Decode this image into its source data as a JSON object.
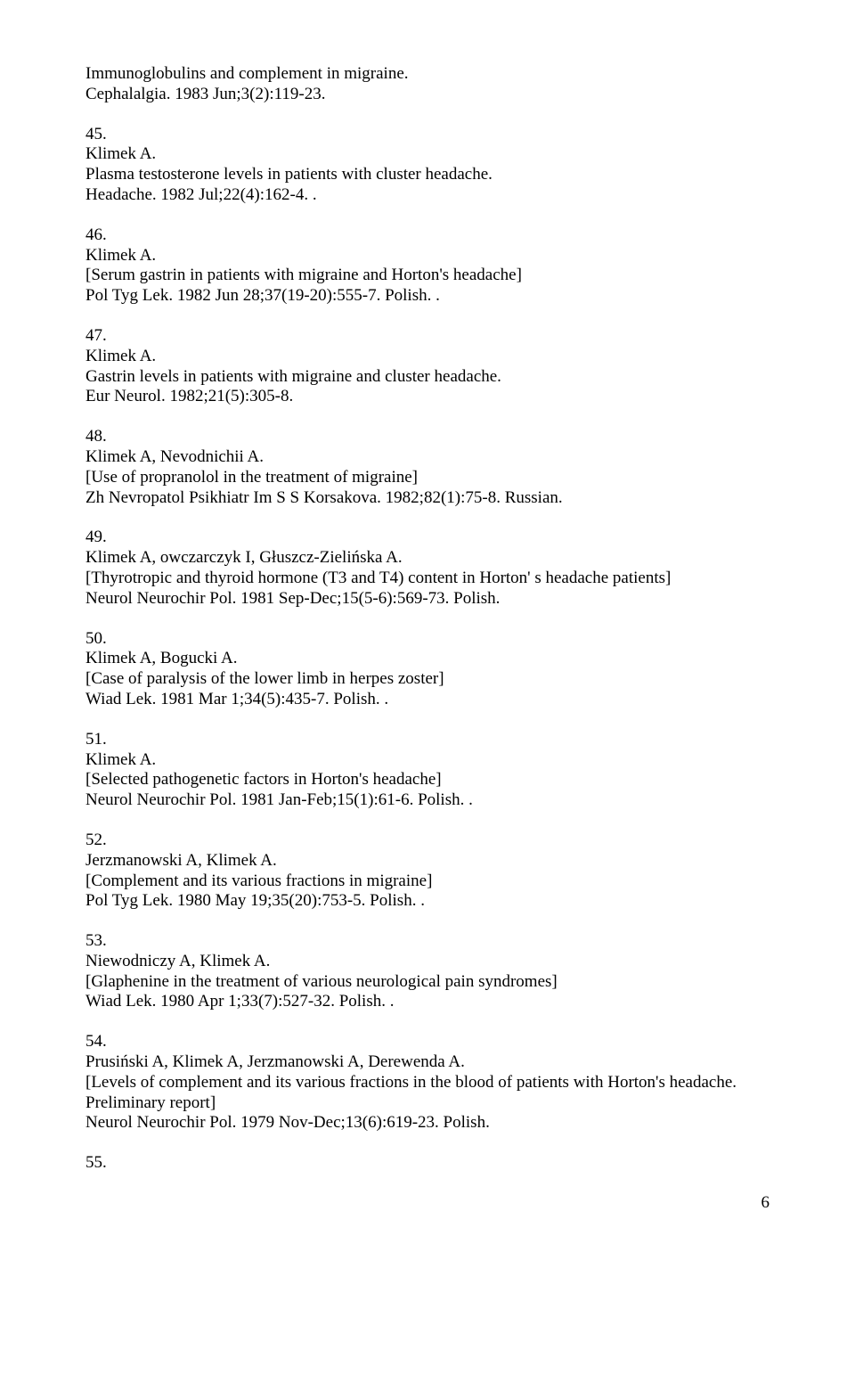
{
  "preamble": {
    "title": "Immunoglobulins and complement in migraine.",
    "citation": "Cephalalgia. 1983 Jun;3(2):119-23."
  },
  "entries": [
    {
      "num": "45.",
      "authors": "Klimek A.",
      "title": "Plasma testosterone levels in patients with cluster headache.",
      "citation": "Headache. 1982 Jul;22(4):162-4. ."
    },
    {
      "num": "46.",
      "authors": "Klimek A.",
      "title": "[Serum gastrin in patients with migraine and Horton's headache]",
      "citation": "Pol Tyg Lek. 1982 Jun 28;37(19-20):555-7. Polish. ."
    },
    {
      "num": "47.",
      "authors": "Klimek A.",
      "title": "Gastrin levels in patients with migraine and cluster headache.",
      "citation": "Eur Neurol. 1982;21(5):305-8."
    },
    {
      "num": "48.",
      "authors": "Klimek A, Nevodnichii A.",
      "title": "[Use of propranolol in the treatment of migraine]",
      "citation": "Zh Nevropatol Psikhiatr Im S S Korsakova. 1982;82(1):75-8. Russian."
    },
    {
      "num": "49.",
      "authors": "Klimek A, owczarczyk I, Głuszcz-Zielińska A.",
      "title": "[Thyrotropic and thyroid hormone (T3 and T4) content in Horton' s headache patients]",
      "citation": "Neurol Neurochir Pol. 1981 Sep-Dec;15(5-6):569-73. Polish."
    },
    {
      "num": "50.",
      "authors": "Klimek A, Bogucki A.",
      "title": "[Case of paralysis of the lower limb in herpes zoster]",
      "citation": "Wiad Lek. 1981 Mar 1;34(5):435-7. Polish. ."
    },
    {
      "num": "51.",
      "authors": "Klimek A.",
      "title": "[Selected pathogenetic factors in Horton's headache]",
      "citation": "Neurol Neurochir Pol. 1981 Jan-Feb;15(1):61-6. Polish. ."
    },
    {
      "num": "52.",
      "authors": "Jerzmanowski A, Klimek A.",
      "title": "[Complement and its various fractions in migraine]",
      "citation": "Pol Tyg Lek. 1980 May 19;35(20):753-5. Polish. ."
    },
    {
      "num": "53.",
      "authors": "Niewodniczy A, Klimek A.",
      "title": "[Glaphenine in the treatment of various neurological pain syndromes]",
      "citation": "Wiad Lek. 1980 Apr 1;33(7):527-32. Polish. ."
    },
    {
      "num": "54.",
      "authors": "Prusiński A, Klimek A, Jerzmanowski A, Derewenda A.",
      "title": "[Levels of complement and its various fractions in the blood of patients with Horton's headache. Preliminary report]",
      "citation": "Neurol Neurochir Pol. 1979 Nov-Dec;13(6):619-23. Polish."
    }
  ],
  "trailing_num": "55.",
  "page_number": "6"
}
